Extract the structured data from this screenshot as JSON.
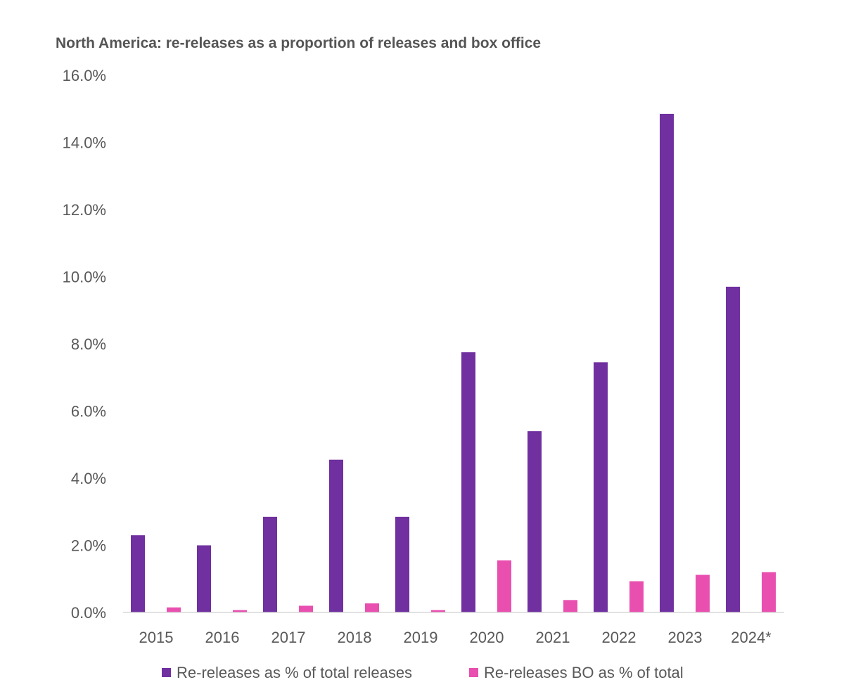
{
  "chart_data": {
    "type": "bar",
    "title": "North America: re-releases as a proportion of releases and box office",
    "xlabel": "",
    "ylabel": "",
    "categories": [
      "2015",
      "2016",
      "2017",
      "2018",
      "2019",
      "2020",
      "2021",
      "2022",
      "2023",
      "2024*"
    ],
    "series": [
      {
        "name": "Re-releases as % of total releases",
        "color": "#7030A0",
        "values": [
          2.3,
          2.0,
          2.85,
          4.55,
          2.85,
          7.75,
          5.4,
          7.45,
          14.85,
          9.7
        ]
      },
      {
        "name": "Re-releases BO as % of total",
        "color": "#E84FAF",
        "values": [
          0.15,
          0.07,
          0.2,
          0.27,
          0.07,
          1.55,
          0.37,
          0.93,
          1.12,
          1.2
        ]
      }
    ],
    "ylim": [
      0,
      16
    ],
    "yticks": [
      "0.0%",
      "2.0%",
      "4.0%",
      "6.0%",
      "8.0%",
      "10.0%",
      "12.0%",
      "14.0%",
      "16.0%"
    ],
    "ytick_values": [
      0,
      2,
      4,
      6,
      8,
      10,
      12,
      14,
      16
    ],
    "grid": false,
    "legend_position": "bottom"
  }
}
